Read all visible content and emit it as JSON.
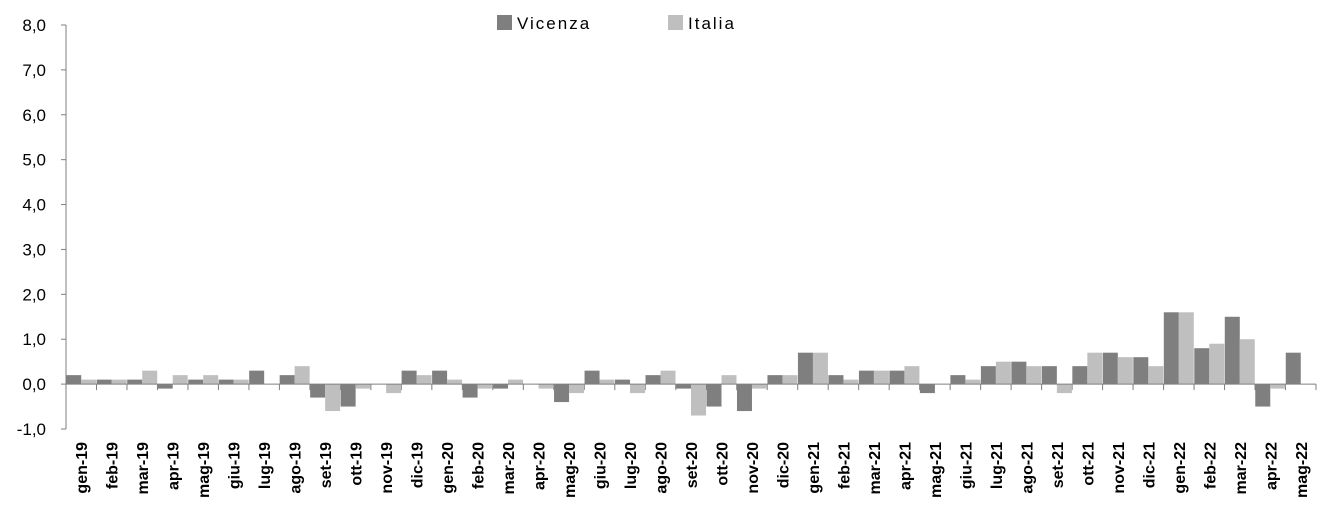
{
  "chart_data": {
    "type": "bar",
    "categories": [
      "gen-19",
      "feb-19",
      "mar-19",
      "apr-19",
      "mag-19",
      "giu-19",
      "lug-19",
      "ago-19",
      "set-19",
      "ott-19",
      "nov-19",
      "dic-19",
      "gen-20",
      "feb-20",
      "mar-20",
      "apr-20",
      "mag-20",
      "giu-20",
      "lug-20",
      "ago-20",
      "set-20",
      "ott-20",
      "nov-20",
      "dic-20",
      "gen-21",
      "feb-21",
      "mar-21",
      "apr-21",
      "mag-21",
      "giu-21",
      "lug-21",
      "ago-21",
      "set-21",
      "ott-21",
      "nov-21",
      "dic-21",
      "gen-22",
      "feb-22",
      "mar-22",
      "apr-22",
      "mag-22"
    ],
    "series": [
      {
        "name": "Vicenza",
        "color": "#7f7f7f",
        "values": [
          0.2,
          0.1,
          0.1,
          -0.1,
          0.1,
          0.1,
          0.3,
          0.2,
          -0.3,
          -0.5,
          0.0,
          0.3,
          0.3,
          -0.3,
          -0.1,
          0.0,
          -0.4,
          0.3,
          0.1,
          0.2,
          -0.1,
          -0.5,
          -0.6,
          0.2,
          0.7,
          0.2,
          0.3,
          0.3,
          -0.2,
          0.2,
          0.4,
          0.5,
          0.4,
          0.4,
          0.7,
          0.6,
          1.6,
          0.8,
          1.5,
          -0.5,
          0.7
        ]
      },
      {
        "name": "Italia",
        "color": "#bfbfbf",
        "values": [
          0.1,
          0.1,
          0.3,
          0.2,
          0.2,
          0.1,
          0.0,
          0.4,
          -0.6,
          -0.1,
          -0.2,
          0.2,
          0.1,
          -0.1,
          0.1,
          -0.1,
          -0.2,
          0.1,
          -0.2,
          0.3,
          -0.7,
          0.2,
          -0.1,
          0.2,
          0.7,
          0.1,
          0.3,
          0.4,
          0.0,
          0.1,
          0.5,
          0.4,
          -0.2,
          0.7,
          0.6,
          0.4,
          1.6,
          0.9,
          1.0,
          -0.1,
          0.0
        ]
      }
    ],
    "ylim": [
      -1.0,
      8.0
    ],
    "yticks": [
      "-1,0",
      "0,0",
      "1,0",
      "2,0",
      "3,0",
      "4,0",
      "5,0",
      "6,0",
      "7,0",
      "8,0"
    ],
    "legend_position": "top-center",
    "grid": false,
    "title": "",
    "xlabel": "",
    "ylabel": ""
  }
}
